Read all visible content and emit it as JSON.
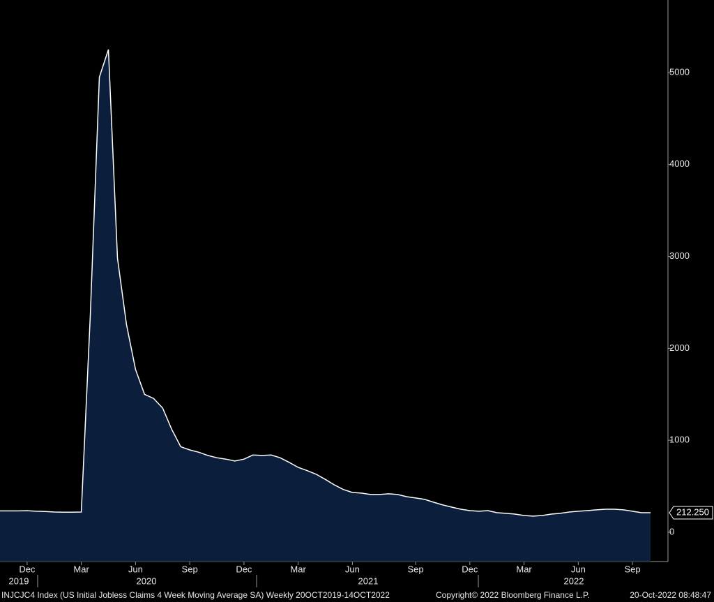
{
  "chart_data": {
    "type": "area",
    "footer": "INJCJC4 Index (US Initial Jobless Claims 4 Week Moving Average SA)  Weekly 20OCT2019-14OCT2022",
    "copyright": "Copyright© 2022 Bloomberg Finance L.P.",
    "timestamp": "20-Oct-2022 08:48:47",
    "categories": [
      null,
      null,
      null,
      "Dec",
      null,
      null,
      null,
      null,
      null,
      "Mar",
      null,
      null,
      null,
      null,
      null,
      "Jun",
      null,
      null,
      null,
      null,
      null,
      "Sep",
      null,
      null,
      null,
      null,
      null,
      "Dec",
      null,
      null,
      null,
      null,
      null,
      "Mar",
      null,
      null,
      null,
      null,
      null,
      "Jun",
      null,
      null,
      null,
      null,
      null,
      null,
      "Sep",
      null,
      null,
      null,
      null,
      null,
      "Dec",
      null,
      null,
      null,
      null,
      null,
      "Mar",
      null,
      null,
      null,
      null,
      null,
      "Jun",
      null,
      null,
      null,
      null,
      null,
      "Sep",
      null,
      null
    ],
    "years": [
      "2019",
      "2020",
      "2021",
      "2022"
    ],
    "values": [
      232,
      232,
      232,
      234,
      228,
      225,
      220,
      218,
      218,
      220,
      2375,
      4950,
      5250,
      2980,
      2260,
      1770,
      1500,
      1455,
      1350,
      1120,
      930,
      895,
      870,
      835,
      810,
      795,
      775,
      795,
      840,
      835,
      840,
      810,
      760,
      705,
      670,
      630,
      575,
      515,
      465,
      432,
      425,
      410,
      410,
      418,
      410,
      387,
      372,
      357,
      326,
      296,
      273,
      250,
      235,
      228,
      235,
      212,
      205,
      197,
      182,
      175,
      182,
      197,
      205,
      220,
      228,
      235,
      243,
      250,
      250,
      243,
      228,
      212,
      212.25
    ],
    "value_labels": [
      null,
      null,
      null,
      null,
      null,
      null,
      null,
      null,
      null,
      null,
      null,
      null,
      null,
      null,
      null,
      null,
      null,
      null,
      null,
      null,
      null,
      null,
      null,
      null,
      null,
      null,
      null,
      null,
      null,
      null,
      null,
      null,
      null,
      null,
      null,
      null,
      null,
      null,
      null,
      null,
      null,
      null,
      null,
      null,
      null,
      null,
      null,
      null,
      null,
      null,
      null,
      null,
      null,
      null,
      null,
      null,
      null,
      null,
      null,
      null,
      null,
      null,
      null,
      null,
      null,
      null,
      null,
      null,
      null,
      null,
      null,
      null,
      "212.250"
    ],
    "color": "#0b1f3d",
    "line_color": "#ffffff",
    "ylim": [
      -319,
      5789
    ],
    "yticks": [
      0,
      1000,
      2000,
      3000,
      4000,
      5000
    ]
  }
}
